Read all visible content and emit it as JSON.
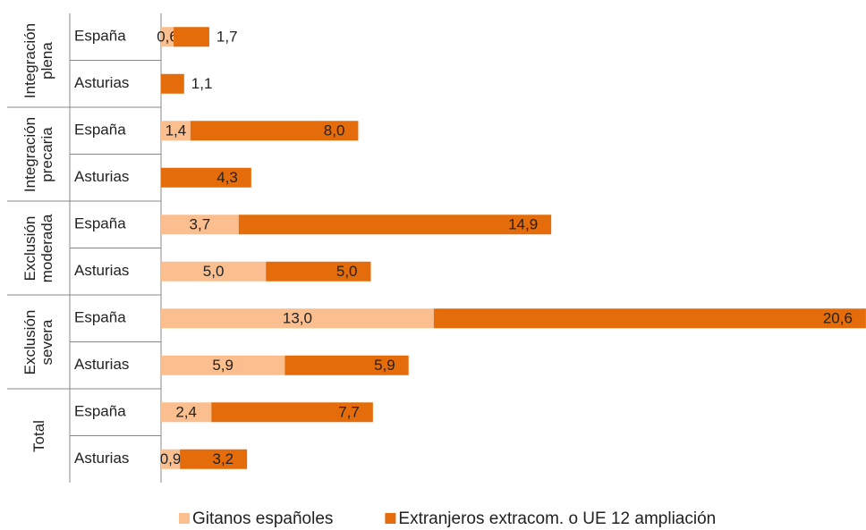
{
  "chart_data": {
    "type": "stacked-bar-horizontal",
    "groups": [
      {
        "name": "Integración plena",
        "categories": [
          "España",
          "Asturias"
        ]
      },
      {
        "name": "Integración precaria",
        "categories": [
          "España",
          "Asturias"
        ]
      },
      {
        "name": "Exclusión moderada",
        "categories": [
          "España",
          "Asturias"
        ]
      },
      {
        "name": "Exclusión severa",
        "categories": [
          "España",
          "Asturias"
        ]
      },
      {
        "name": "Total",
        "categories": [
          "España",
          "Asturias"
        ]
      }
    ],
    "series": [
      {
        "name": "Gitanos españoles",
        "color": "#fbbf8f",
        "values": [
          0.6,
          null,
          1.4,
          null,
          3.7,
          5.0,
          13.0,
          5.9,
          2.4,
          0.9
        ],
        "value_labels": [
          "0,6",
          null,
          "1,4",
          null,
          "3,7",
          "5,0",
          "13,0",
          "5,9",
          "2,4",
          "0,9"
        ]
      },
      {
        "name": "Extranjeros extracom. o UE 12 ampliación",
        "color": "#e46c0a",
        "values": [
          1.7,
          1.1,
          8.0,
          4.3,
          14.9,
          5.0,
          20.6,
          5.9,
          7.7,
          3.2
        ],
        "value_labels": [
          "1,7",
          "1,1",
          "8,0",
          "4,3",
          "14,9",
          "5,0",
          "20,6",
          "5,9",
          "7,7",
          "3,2"
        ]
      }
    ],
    "legend": "bottom"
  }
}
